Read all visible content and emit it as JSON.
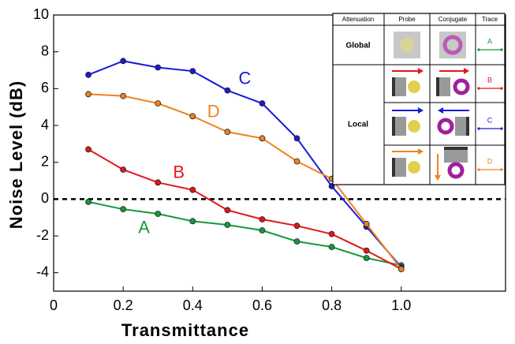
{
  "chart_data": {
    "type": "line",
    "xlabel": "Transmittance",
    "ylabel": "Noise Level (dB)",
    "x": [
      0.1,
      0.2,
      0.3,
      0.4,
      0.5,
      0.6,
      0.7,
      0.8,
      0.9,
      1.0
    ],
    "series": [
      {
        "name": "A",
        "color": "#16983c",
        "values": [
          -0.15,
          -0.55,
          -0.8,
          -1.2,
          -1.4,
          -1.7,
          -2.3,
          -2.6,
          -3.2,
          -3.6
        ]
      },
      {
        "name": "B",
        "color": "#e3161b",
        "values": [
          2.7,
          1.6,
          0.9,
          0.5,
          -0.6,
          -1.1,
          -1.45,
          -1.9,
          -2.8,
          -3.8
        ]
      },
      {
        "name": "C",
        "color": "#1a1ad8",
        "values": [
          6.75,
          7.5,
          7.15,
          6.95,
          5.9,
          5.2,
          3.3,
          0.7,
          -1.5,
          -3.7
        ]
      },
      {
        "name": "D",
        "color": "#f0821e",
        "values": [
          5.7,
          5.6,
          5.2,
          4.5,
          3.65,
          3.3,
          2.05,
          1.1,
          -1.35,
          -3.8
        ]
      }
    ],
    "xlim": [
      0,
      1.3
    ],
    "ylim": [
      -5,
      10
    ],
    "xticks": [
      0,
      0.2,
      0.4,
      0.6,
      0.8,
      {
        "value": 1,
        "label": "1.0"
      }
    ],
    "yticks": [
      -4,
      -2,
      0,
      2,
      4,
      6,
      8,
      10
    ],
    "hline": 0,
    "inset_table": {
      "header": [
        "Attenuation",
        "Probe",
        "Conjugate",
        "Trace"
      ],
      "rows": [
        "Global",
        "Local"
      ]
    }
  }
}
